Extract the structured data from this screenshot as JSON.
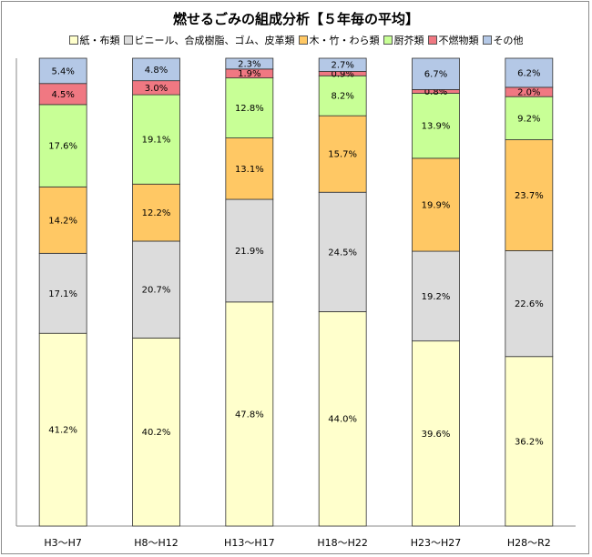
{
  "chart_data": {
    "type": "bar",
    "stacked": true,
    "percent_stacked": true,
    "title": "燃せるごみの組成分析【５年毎の平均】",
    "categories": [
      "H3～H7",
      "H8～H12",
      "H13～H17",
      "H18～H22",
      "H23～H27",
      "H28～R2"
    ],
    "series": [
      {
        "name": "紙・布類",
        "color": "#ffffcc",
        "values": [
          41.2,
          40.2,
          47.8,
          44.0,
          39.6,
          36.2
        ],
        "labels": [
          "41.2%",
          "40.2%",
          "47.8%",
          "44.0%",
          "39.6%",
          "36.2%"
        ]
      },
      {
        "name": "ビニール、合成樹脂、ゴム、皮革類",
        "color": "#dcdcdc",
        "values": [
          17.1,
          20.7,
          21.9,
          24.5,
          19.2,
          22.6
        ],
        "labels": [
          "17.1%",
          "20.7%",
          "21.9%",
          "24.5%",
          "19.2%",
          "22.6%"
        ]
      },
      {
        "name": "木・竹・わら類",
        "color": "#ffc864",
        "values": [
          14.2,
          12.2,
          13.1,
          15.7,
          19.9,
          23.7
        ],
        "labels": [
          "14.2%",
          "12.2%",
          "13.1%",
          "15.7%",
          "19.9%",
          "23.7%"
        ]
      },
      {
        "name": "厨芥類",
        "color": "#c8ff96",
        "values": [
          17.6,
          19.1,
          12.8,
          8.2,
          13.9,
          9.2
        ],
        "labels": [
          "17.6%",
          "19.1%",
          "12.8%",
          "8.2%",
          "13.9%",
          "9.2%"
        ]
      },
      {
        "name": "不燃物類",
        "color": "#f07882",
        "values": [
          4.5,
          3.0,
          1.9,
          0.9,
          0.8,
          2.0
        ],
        "labels": [
          "4.5%",
          "3.0%",
          "1.9%",
          "0.9%",
          "0.8%",
          "2.0%"
        ]
      },
      {
        "name": "その他",
        "color": "#b4c8e6",
        "values": [
          5.4,
          4.8,
          2.3,
          2.7,
          6.7,
          6.2
        ],
        "labels": [
          "5.4%",
          "4.8%",
          "2.3%",
          "2.7%",
          "6.7%",
          "6.2%"
        ]
      }
    ],
    "ylim": [
      0,
      100
    ],
    "grid": false,
    "legend_position": "top"
  }
}
